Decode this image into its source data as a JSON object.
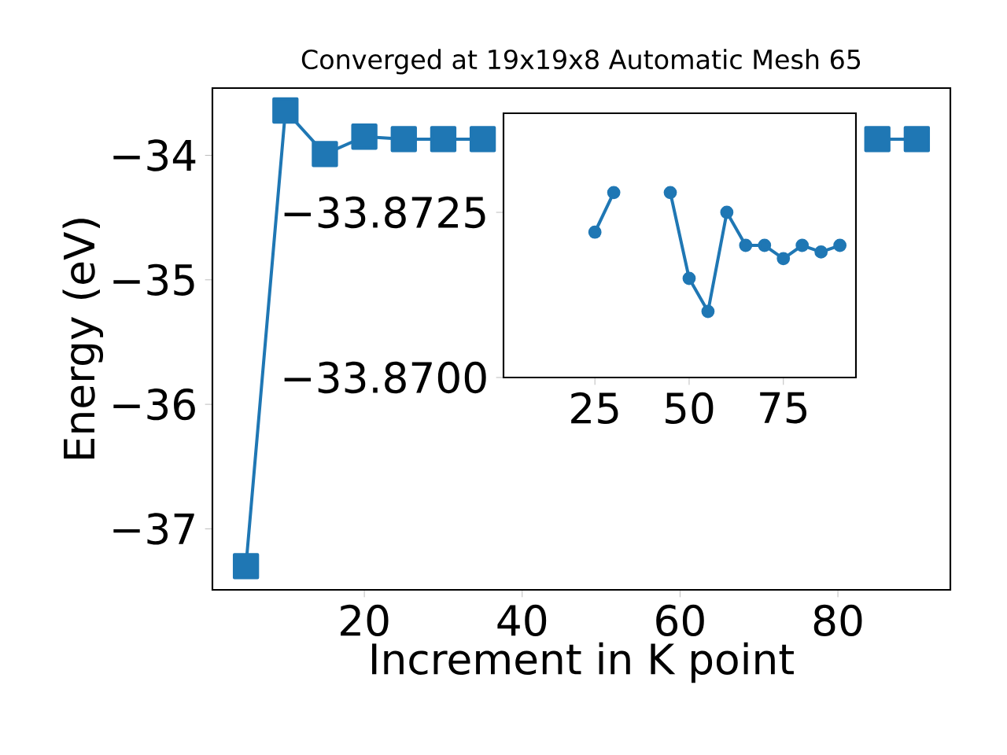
{
  "chart_data": [
    {
      "type": "line",
      "title": "Converged at 19x19x8 Automatic Mesh 65",
      "xlabel": "Increment in K point",
      "ylabel": "Energy (eV)",
      "x": [
        5,
        10,
        15,
        20,
        25,
        30,
        35,
        40,
        45,
        50,
        55,
        60,
        65,
        70,
        75,
        80,
        85,
        90
      ],
      "series": [
        {
          "color": "#1f77b4",
          "values": [
            -37.3,
            -33.64,
            -33.99,
            -33.85,
            -33.87,
            -33.87,
            -33.87,
            null,
            null,
            null,
            null,
            null,
            null,
            null,
            null,
            null,
            -33.87,
            -33.87
          ]
        }
      ],
      "xlim": [
        0.75,
        94.25
      ],
      "ylim": [
        -37.49,
        -33.46
      ],
      "xticks": [
        20,
        40,
        60,
        80
      ],
      "yticks": [
        {
          "value": -37,
          "label": "−37"
        },
        {
          "value": -36,
          "label": "−36"
        },
        {
          "value": -35,
          "label": "−35"
        },
        {
          "value": -34,
          "label": "−34"
        }
      ],
      "marker": "square",
      "line_style": "solid"
    },
    {
      "type": "line",
      "x": [
        25,
        30,
        35,
        40,
        45,
        50,
        55,
        60,
        65,
        70,
        75,
        80,
        85,
        90
      ],
      "series": [
        {
          "color": "#1f77b4",
          "values": [
            -33.8722,
            -33.8728,
            null,
            null,
            -33.8728,
            -33.8715,
            -33.871,
            -33.8725,
            -33.872,
            -33.872,
            -33.8718,
            -33.872,
            -33.8719,
            -33.872
          ]
        }
      ],
      "xlim": [
        0.75,
        94.25
      ],
      "ylim": [
        -33.87,
        -33.874
      ],
      "xticks": [
        25,
        50,
        75
      ],
      "yticks": [
        {
          "value": -33.8725,
          "label": "−33.8725"
        },
        {
          "value": -33.87,
          "label": "−33.8700"
        }
      ],
      "marker": "circle",
      "line_style": "solid"
    }
  ]
}
